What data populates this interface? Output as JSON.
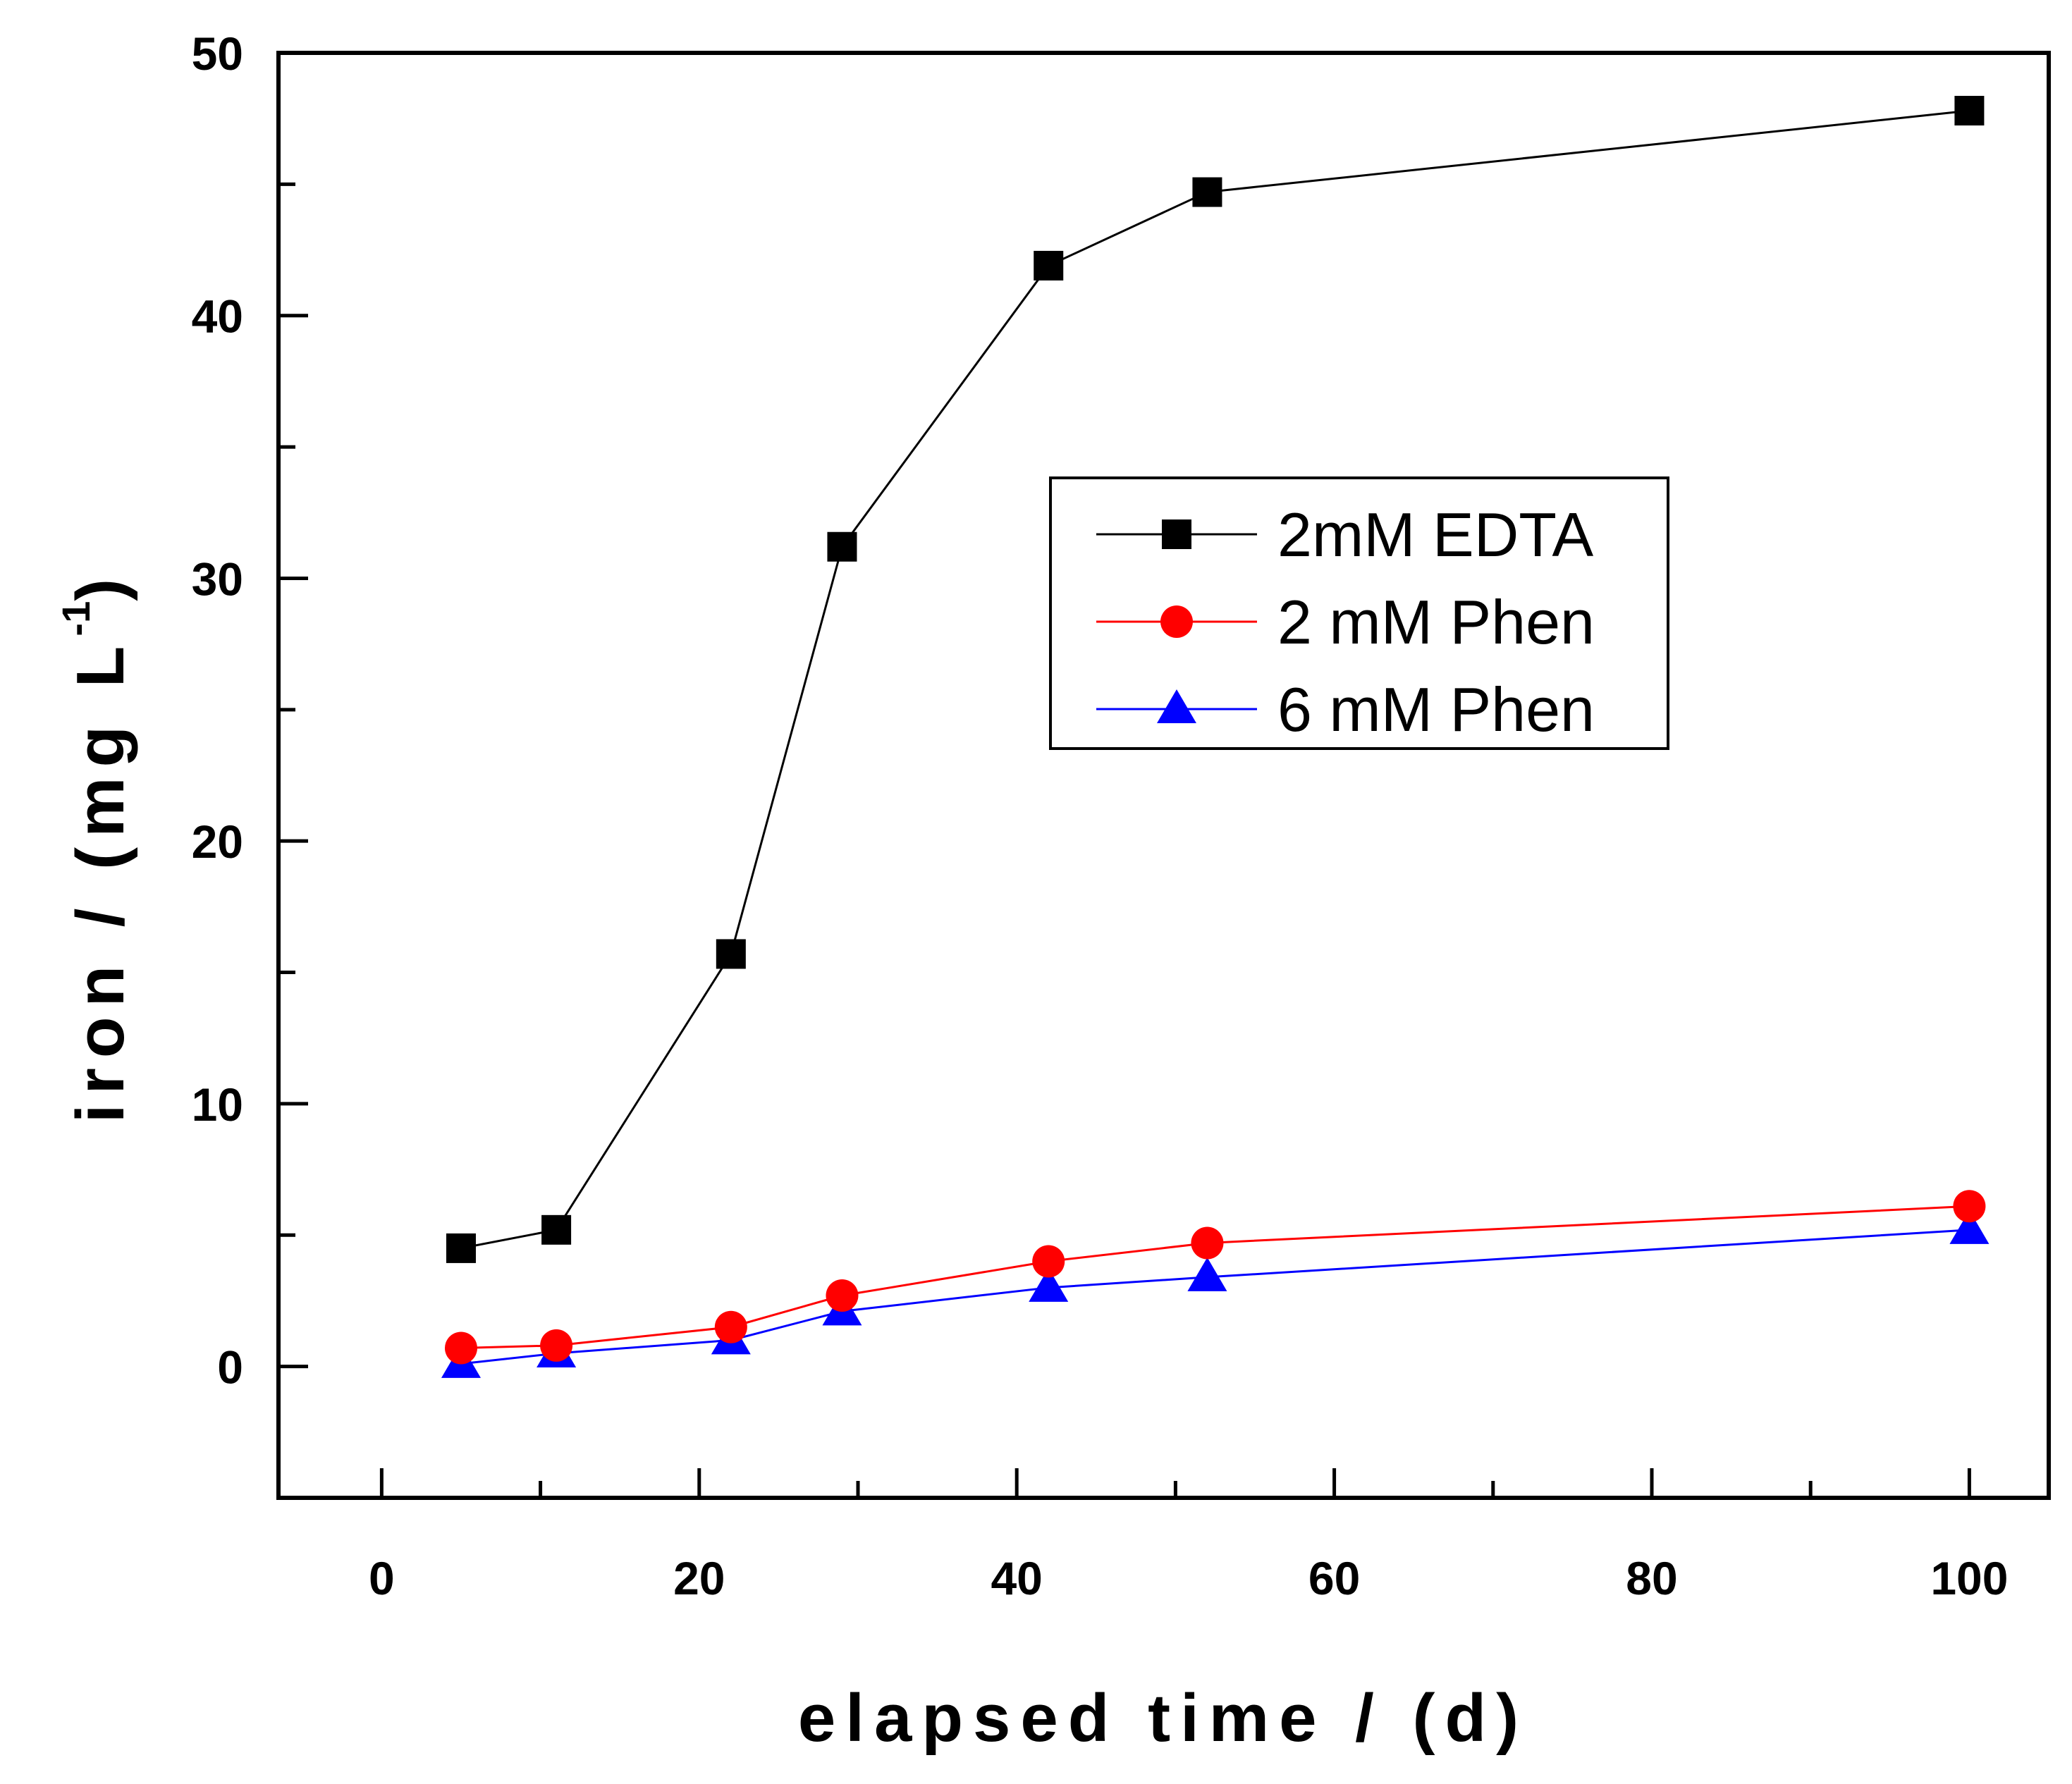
{
  "chart_data": {
    "type": "line",
    "title": "",
    "xlabel": "elapsed time / (d)",
    "ylabel_main": "iron / (mg L",
    "ylabel_sup": "-1",
    "ylabel_close": ")",
    "xlim": [
      -6.5,
      105
    ],
    "ylim": [
      -5,
      50
    ],
    "x_ticks": [
      0,
      20,
      40,
      60,
      80,
      100
    ],
    "y_ticks": [
      0,
      10,
      20,
      30,
      40,
      50
    ],
    "x_tick_labels": [
      "0",
      "20",
      "40",
      "60",
      "80",
      "100"
    ],
    "y_tick_labels": [
      "0",
      "10",
      "20",
      "30",
      "40",
      "50"
    ],
    "legend_position": "center-right",
    "series": [
      {
        "name": "2mM EDTA",
        "color": "#000000",
        "marker": "square",
        "x": [
          5,
          11,
          22,
          29,
          42,
          52,
          100
        ],
        "y": [
          4.5,
          5.2,
          15.7,
          31.2,
          41.9,
          44.7,
          47.8
        ]
      },
      {
        "name": "2 mM Phen",
        "color": "#ff0000",
        "marker": "circle",
        "x": [
          5,
          11,
          22,
          29,
          42,
          52,
          100
        ],
        "y": [
          0.7,
          0.8,
          1.5,
          2.7,
          4.0,
          4.7,
          6.1
        ]
      },
      {
        "name": "6 mM Phen",
        "color": "#0000ff",
        "marker": "triangle",
        "x": [
          5,
          11,
          22,
          29,
          42,
          52,
          100
        ],
        "y": [
          0.1,
          0.5,
          1.0,
          2.1,
          3.0,
          3.4,
          5.2
        ]
      }
    ]
  }
}
